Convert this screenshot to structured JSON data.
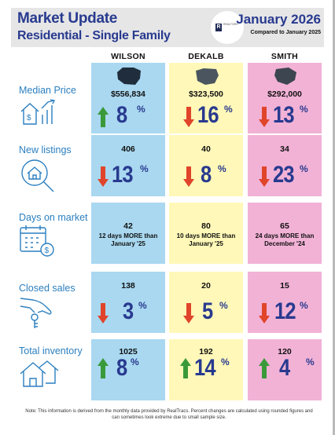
{
  "header": {
    "title": "Market Update",
    "subtitle": "Residential - Single Family",
    "month": "January 2026",
    "compared": "Compared to January 2025",
    "logo_letter": "R",
    "logo_text": "REALTORS"
  },
  "columns": [
    "WILSON",
    "DEKALB",
    "SMITH"
  ],
  "rows": {
    "median": {
      "label": "Median Price",
      "cells": [
        {
          "value": "$556,834",
          "pct": "8",
          "dir": "up"
        },
        {
          "value": "$323,500",
          "pct": "16",
          "dir": "down"
        },
        {
          "value": "$292,000",
          "pct": "13",
          "dir": "down"
        }
      ]
    },
    "listings": {
      "label": "New listings",
      "cells": [
        {
          "value": "406",
          "pct": "13",
          "dir": "down"
        },
        {
          "value": "40",
          "pct": "8",
          "dir": "down"
        },
        {
          "value": "34",
          "pct": "23",
          "dir": "down"
        }
      ]
    },
    "days": {
      "label": "Days on market",
      "cells": [
        {
          "value": "42",
          "note1": "12 days MORE than",
          "note2": "January '25"
        },
        {
          "value": "80",
          "note1": "10 days MORE than",
          "note2": "January '25"
        },
        {
          "value": "65",
          "note1": "24 days MORE than",
          "note2": "December '24"
        }
      ]
    },
    "closed": {
      "label": "Closed sales",
      "cells": [
        {
          "value": "138",
          "pct": "3",
          "dir": "down"
        },
        {
          "value": "20",
          "pct": "5",
          "dir": "down"
        },
        {
          "value": "15",
          "pct": "12",
          "dir": "down"
        }
      ]
    },
    "inventory": {
      "label": "Total inventory",
      "cells": [
        {
          "value": "1025",
          "pct": "8",
          "dir": "up"
        },
        {
          "value": "192",
          "pct": "14",
          "dir": "up"
        },
        {
          "value": "120",
          "pct": "4",
          "dir": "up"
        }
      ]
    }
  },
  "percent_symbol": "%",
  "footer": {
    "line1": "Note: This information is derived from the monthly data provided by RealTracs. Percent changes are calculated using rounded figures and",
    "line2": "can sometimes look extreme due to small sample size."
  },
  "colors": {
    "wilson": "#a9d8f0",
    "dekalb": "#fff8b8",
    "smith": "#f2b2d6",
    "up_arrow": "#3a9a3a",
    "down_arrow": "#e0442a",
    "title": "#283a8f",
    "label": "#2b7fc0"
  }
}
